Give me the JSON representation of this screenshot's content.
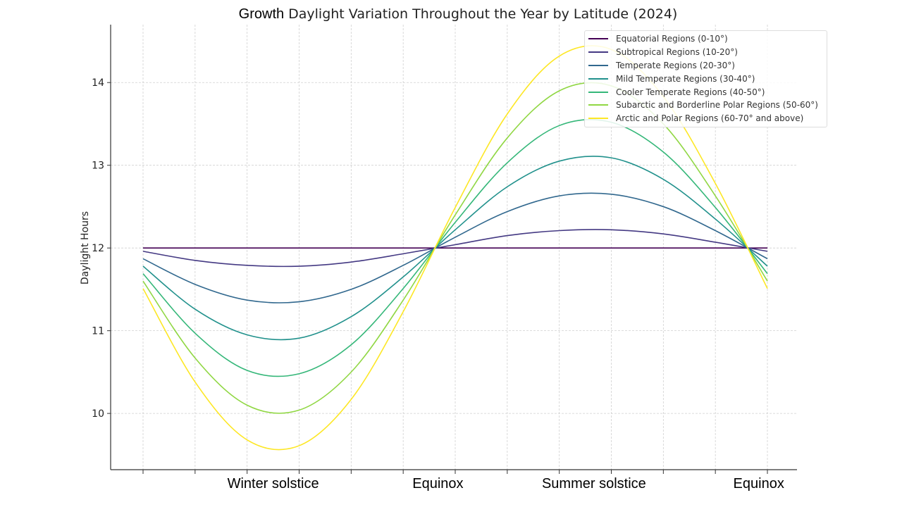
{
  "chart_data": {
    "type": "line",
    "title_prefix": "Growth",
    "title": "Daylight Variation Throughout the Year by Latitude (2024)",
    "xlabel": "",
    "ylabel": "Daylight Hours",
    "x": [
      0,
      30,
      60,
      90,
      120,
      150,
      180,
      210,
      240,
      270,
      300,
      330,
      360
    ],
    "xlim": [
      0,
      360
    ],
    "ylim": [
      9.32,
      14.7
    ],
    "yticks": [
      10,
      11,
      12,
      13,
      14
    ],
    "grid": true,
    "legend_position": "top-right",
    "x_annotations": [
      {
        "label": "Winter solstice",
        "x": 75
      },
      {
        "label": "Equinox",
        "x": 170
      },
      {
        "label": "Summer solstice",
        "x": 260
      },
      {
        "label": "Equinox",
        "x": 355
      }
    ],
    "series": [
      {
        "name": "Equatorial Regions (0-10°)",
        "color": "#440154",
        "values": [
          12,
          12,
          12,
          12,
          12,
          12,
          12,
          12,
          12,
          12,
          12,
          12,
          12
        ]
      },
      {
        "name": "Subtropical Regions (10-20°)",
        "color": "#443983",
        "values": [
          11.96,
          11.85,
          11.79,
          11.78,
          11.83,
          11.93,
          12.04,
          12.15,
          12.21,
          12.22,
          12.17,
          12.07,
          11.96
        ]
      },
      {
        "name": "Temperate Regions (20-30°)",
        "color": "#31688e",
        "values": [
          11.87,
          11.56,
          11.37,
          11.35,
          11.5,
          11.79,
          12.13,
          12.44,
          12.63,
          12.65,
          12.5,
          12.21,
          11.87
        ]
      },
      {
        "name": "Mild Temperate Regions (30-40°)",
        "color": "#21918c",
        "values": [
          11.78,
          11.26,
          10.95,
          10.91,
          11.17,
          11.65,
          12.22,
          12.74,
          13.05,
          13.09,
          12.83,
          12.35,
          11.78
        ]
      },
      {
        "name": "Cooler Temperate Regions (40-50°)",
        "color": "#35b779",
        "values": [
          11.69,
          10.97,
          10.52,
          10.48,
          10.83,
          11.51,
          12.31,
          13.03,
          13.48,
          13.52,
          13.16,
          12.49,
          11.69
        ]
      },
      {
        "name": "Subarctic and Borderline Polar Regions (50-60°)",
        "color": "#90d743",
        "values": [
          11.6,
          10.67,
          10.1,
          10.04,
          10.5,
          11.37,
          12.4,
          13.33,
          13.9,
          13.96,
          13.5,
          12.63,
          11.6
        ]
      },
      {
        "name": "Arctic and Polar Regions (60-70° and above)",
        "color": "#fde725",
        "values": [
          11.51,
          10.38,
          9.68,
          9.61,
          10.17,
          11.23,
          12.49,
          13.62,
          14.32,
          14.4,
          13.83,
          12.78,
          11.51
        ]
      }
    ]
  }
}
